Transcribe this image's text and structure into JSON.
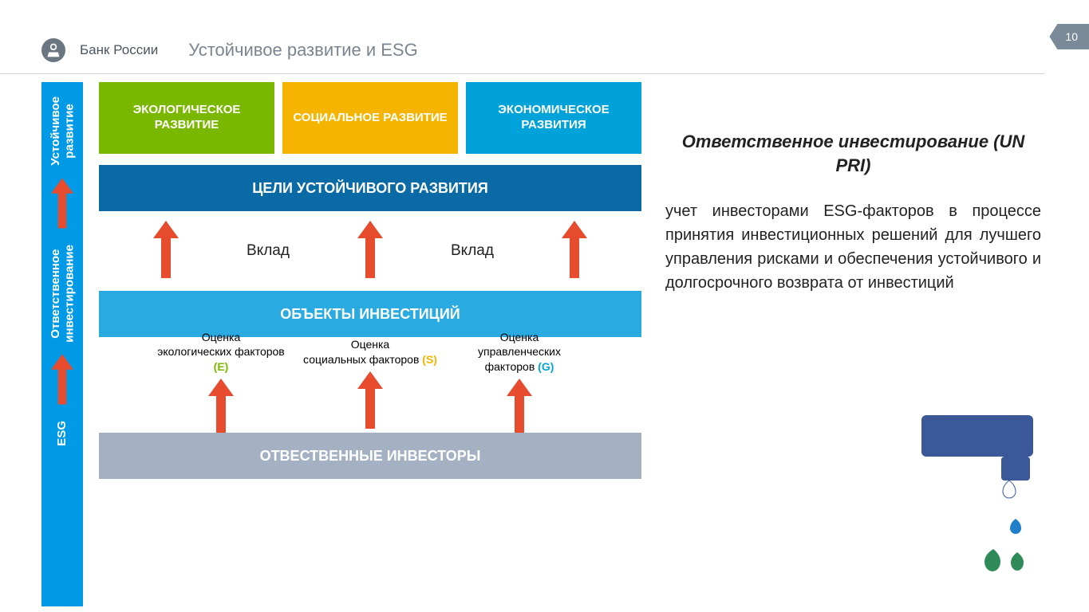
{
  "page_number": "10",
  "header": {
    "bank_name": "Банк России",
    "title": "Устойчивое развитие и ESG"
  },
  "colors": {
    "rail_bg": "#0099e5",
    "arrow_orange": "#e74c2e",
    "pillar_green": "#7ab800",
    "pillar_yellow": "#f5b400",
    "pillar_cyan": "#00a3d9",
    "bar_darkblue": "#0a6aa6",
    "bar_lightblue": "#29abe2",
    "bar_slate": "#a3b1c2",
    "faucet": "#3b5998",
    "drop_blue": "#1f7fc9",
    "drop_green": "#2e8b57"
  },
  "rail": {
    "top": "Устойчивое\nразвитие",
    "mid": "Ответственное\nинвестирование",
    "bottom": "ESG"
  },
  "pillars": [
    {
      "label": "ЭКОЛОГИЧЕСКОЕ РАЗВИТИЕ",
      "color_key": "pillar_green"
    },
    {
      "label": "СОЦИАЛЬНОЕ РАЗВИТИЕ",
      "color_key": "pillar_yellow"
    },
    {
      "label": "ЭКОНОМИЧЕСКОЕ РАЗВИТИЯ",
      "color_key": "pillar_cyan"
    }
  ],
  "bars": {
    "goals": "ЦЕЛИ УСТОЙЧИВОГО РАЗВИТИЯ",
    "objects": "ОБЪЕКТЫ ИНВЕСТИЦИЙ",
    "investors": "ОТВЕСТВЕННЫЕ ИНВЕСТОРЫ"
  },
  "labels": {
    "contribution": "Вклад",
    "factor_prefix": "Оценка",
    "factors": [
      {
        "line": "экологических факторов",
        "letter": "(E)",
        "letter_color": "#7ab800"
      },
      {
        "line": "социальных факторов",
        "letter": "(S)",
        "letter_color": "#f5b400"
      },
      {
        "line": "управленческих факторов",
        "letter": "(G)",
        "letter_color": "#00a3d9"
      }
    ]
  },
  "side": {
    "title": "Ответственное инвестирование (UN PRI)",
    "body": "учет инвесторами ESG-факторов в процессе принятия инвестиционных решений для лучшего управления рисками и обеспечения устойчивого и долгосрочного возврата от инвестиций"
  }
}
